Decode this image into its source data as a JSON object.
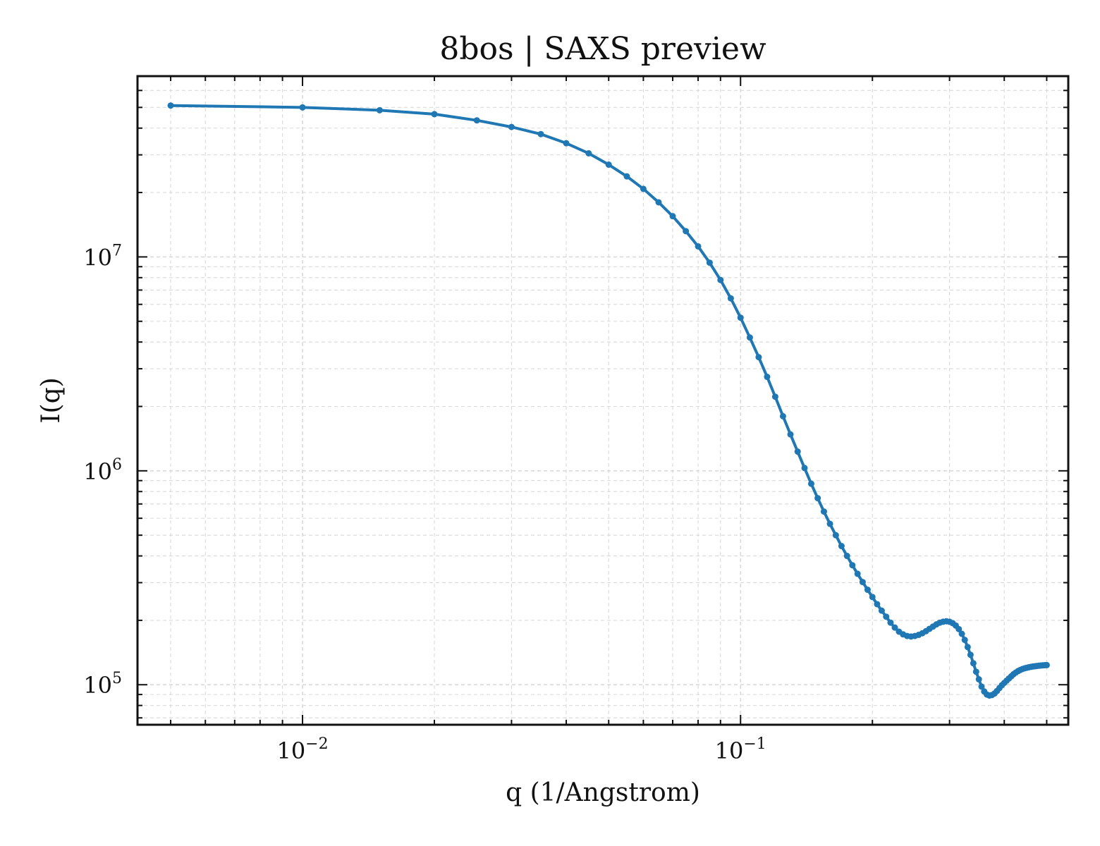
{
  "chart_data": {
    "type": "line",
    "title": "8bos | SAXS preview",
    "xlabel": "q (1/Angstrom)",
    "ylabel": "I(q)",
    "xscale": "log",
    "yscale": "log",
    "xlim": [
      0.0042,
      0.56
    ],
    "ylim": [
      65000,
      70000000
    ],
    "grid": true,
    "legend": "none",
    "colors": {
      "series": "#1f77b4",
      "grid": "#d9d9d9",
      "axes": "#111111"
    },
    "x_ticks": [
      {
        "value": 0.01,
        "base": "10",
        "exp": "−2"
      },
      {
        "value": 0.1,
        "base": "10",
        "exp": "−1"
      }
    ],
    "y_ticks": [
      {
        "value": 100000,
        "base": "10",
        "exp": "5"
      },
      {
        "value": 1000000,
        "base": "10",
        "exp": "6"
      },
      {
        "value": 10000000,
        "base": "10",
        "exp": "7"
      }
    ],
    "series": [
      {
        "x": [
          0.005,
          0.01,
          0.015,
          0.02,
          0.025,
          0.03,
          0.035,
          0.04,
          0.045,
          0.05,
          0.055,
          0.06,
          0.065,
          0.07,
          0.075,
          0.08,
          0.085,
          0.09,
          0.095,
          0.1,
          0.105,
          0.11,
          0.115,
          0.12,
          0.125,
          0.13,
          0.135,
          0.14,
          0.145,
          0.15,
          0.155,
          0.16,
          0.165,
          0.17,
          0.175,
          0.18,
          0.185,
          0.19,
          0.195,
          0.2,
          0.205,
          0.21,
          0.215,
          0.22,
          0.225,
          0.23,
          0.235,
          0.24,
          0.245,
          0.25,
          0.255,
          0.26,
          0.265,
          0.27,
          0.275,
          0.28,
          0.285,
          0.29,
          0.295,
          0.3,
          0.305,
          0.31,
          0.315,
          0.32,
          0.325,
          0.33,
          0.335,
          0.34,
          0.345,
          0.35,
          0.355,
          0.36,
          0.365,
          0.37,
          0.375,
          0.38,
          0.385,
          0.39,
          0.395,
          0.4,
          0.405,
          0.41,
          0.415,
          0.42,
          0.425,
          0.43,
          0.435,
          0.44,
          0.445,
          0.45,
          0.455,
          0.46,
          0.465,
          0.47,
          0.475,
          0.48,
          0.485,
          0.49,
          0.495,
          0.5
        ],
        "y": [
          51000000,
          50000000,
          48500000,
          46500000,
          43500000,
          40500000,
          37500000,
          34000000,
          30500000,
          27000000,
          23800000,
          20800000,
          18000000,
          15500000,
          13200000,
          11200000,
          9400000,
          7800000,
          6400000,
          5200000,
          4200000,
          3400000,
          2750000,
          2220000,
          1800000,
          1480000,
          1230000,
          1030000,
          870000,
          745000,
          645000,
          565000,
          500000,
          445000,
          400000,
          362000,
          330000,
          302000,
          278000,
          257000,
          238000,
          222000,
          208000,
          195000,
          185000,
          177000,
          172000,
          169000,
          168000,
          169000,
          171000,
          174000,
          178000,
          182500,
          187000,
          191500,
          195000,
          197000,
          198000,
          197000,
          194000,
          189000,
          182000,
          173000,
          162000,
          150000,
          138000,
          126000,
          115000,
          106000,
          98000,
          93000,
          90000,
          89000,
          89500,
          91000,
          93500,
          96500,
          99500,
          102000,
          104500,
          107000,
          109500,
          112000,
          114000,
          115800,
          117200,
          118400,
          119300,
          120000,
          120700,
          121200,
          121700,
          122000,
          122400,
          122700,
          123000,
          123200,
          123400,
          123500
        ]
      }
    ]
  }
}
